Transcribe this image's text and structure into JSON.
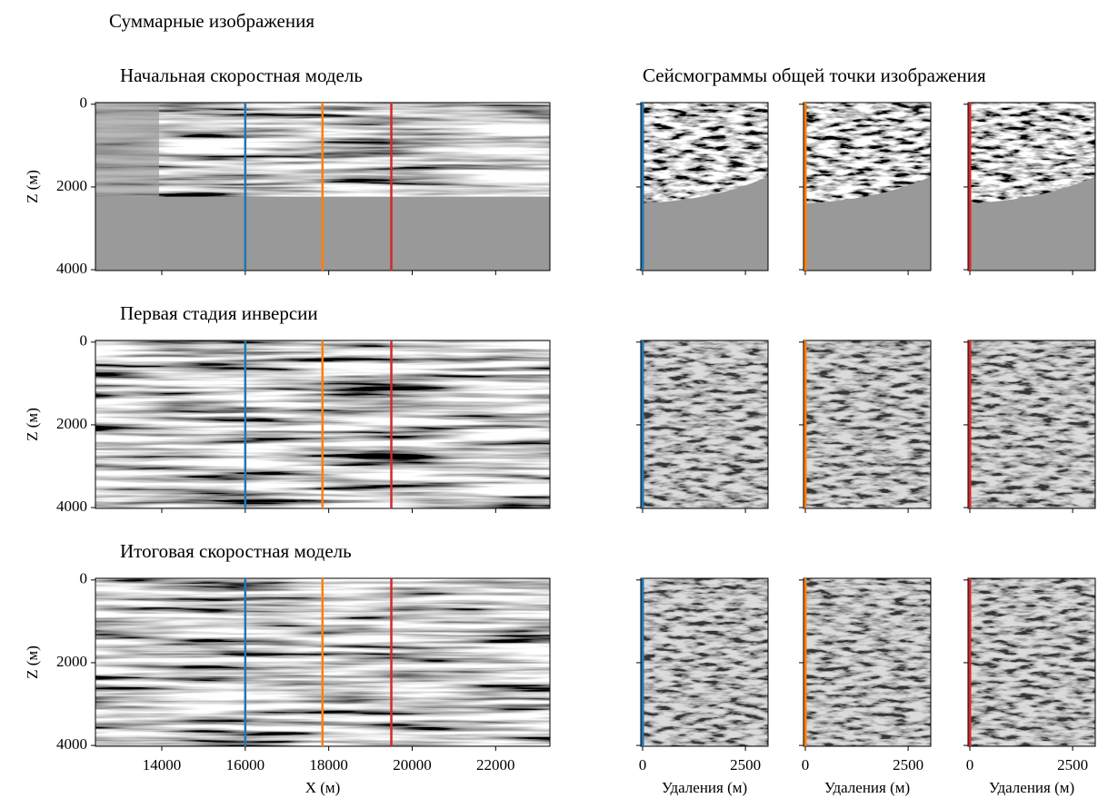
{
  "title": "Суммарные изображения",
  "gather_title": "Сейсмограммы общей точки изображения",
  "stack": {
    "xlabel": "X (м)",
    "ylabel": "Z (м)",
    "xlim": [
      12410,
      23300
    ],
    "ylim": [
      4020,
      -40
    ],
    "xticks": [
      14000,
      16000,
      18000,
      20000,
      22000
    ],
    "yticks": [
      0,
      2000,
      4000
    ]
  },
  "gather": {
    "xlabel": "Удаления (м)",
    "xlim": [
      -44,
      3050
    ],
    "xticks": [
      0,
      2500
    ]
  },
  "positions": [
    {
      "x": 16000,
      "color": "#1f77b4"
    },
    {
      "x": 17850,
      "color": "#ff7f0e"
    },
    {
      "x": 19500,
      "color": "#d62728"
    }
  ],
  "rows": [
    {
      "title": "Начальная скоростная модель",
      "muted": true
    },
    {
      "title": "Первая стадия инверсии",
      "muted": false
    },
    {
      "title": "Итоговая скоростная модель",
      "muted": false
    }
  ]
}
